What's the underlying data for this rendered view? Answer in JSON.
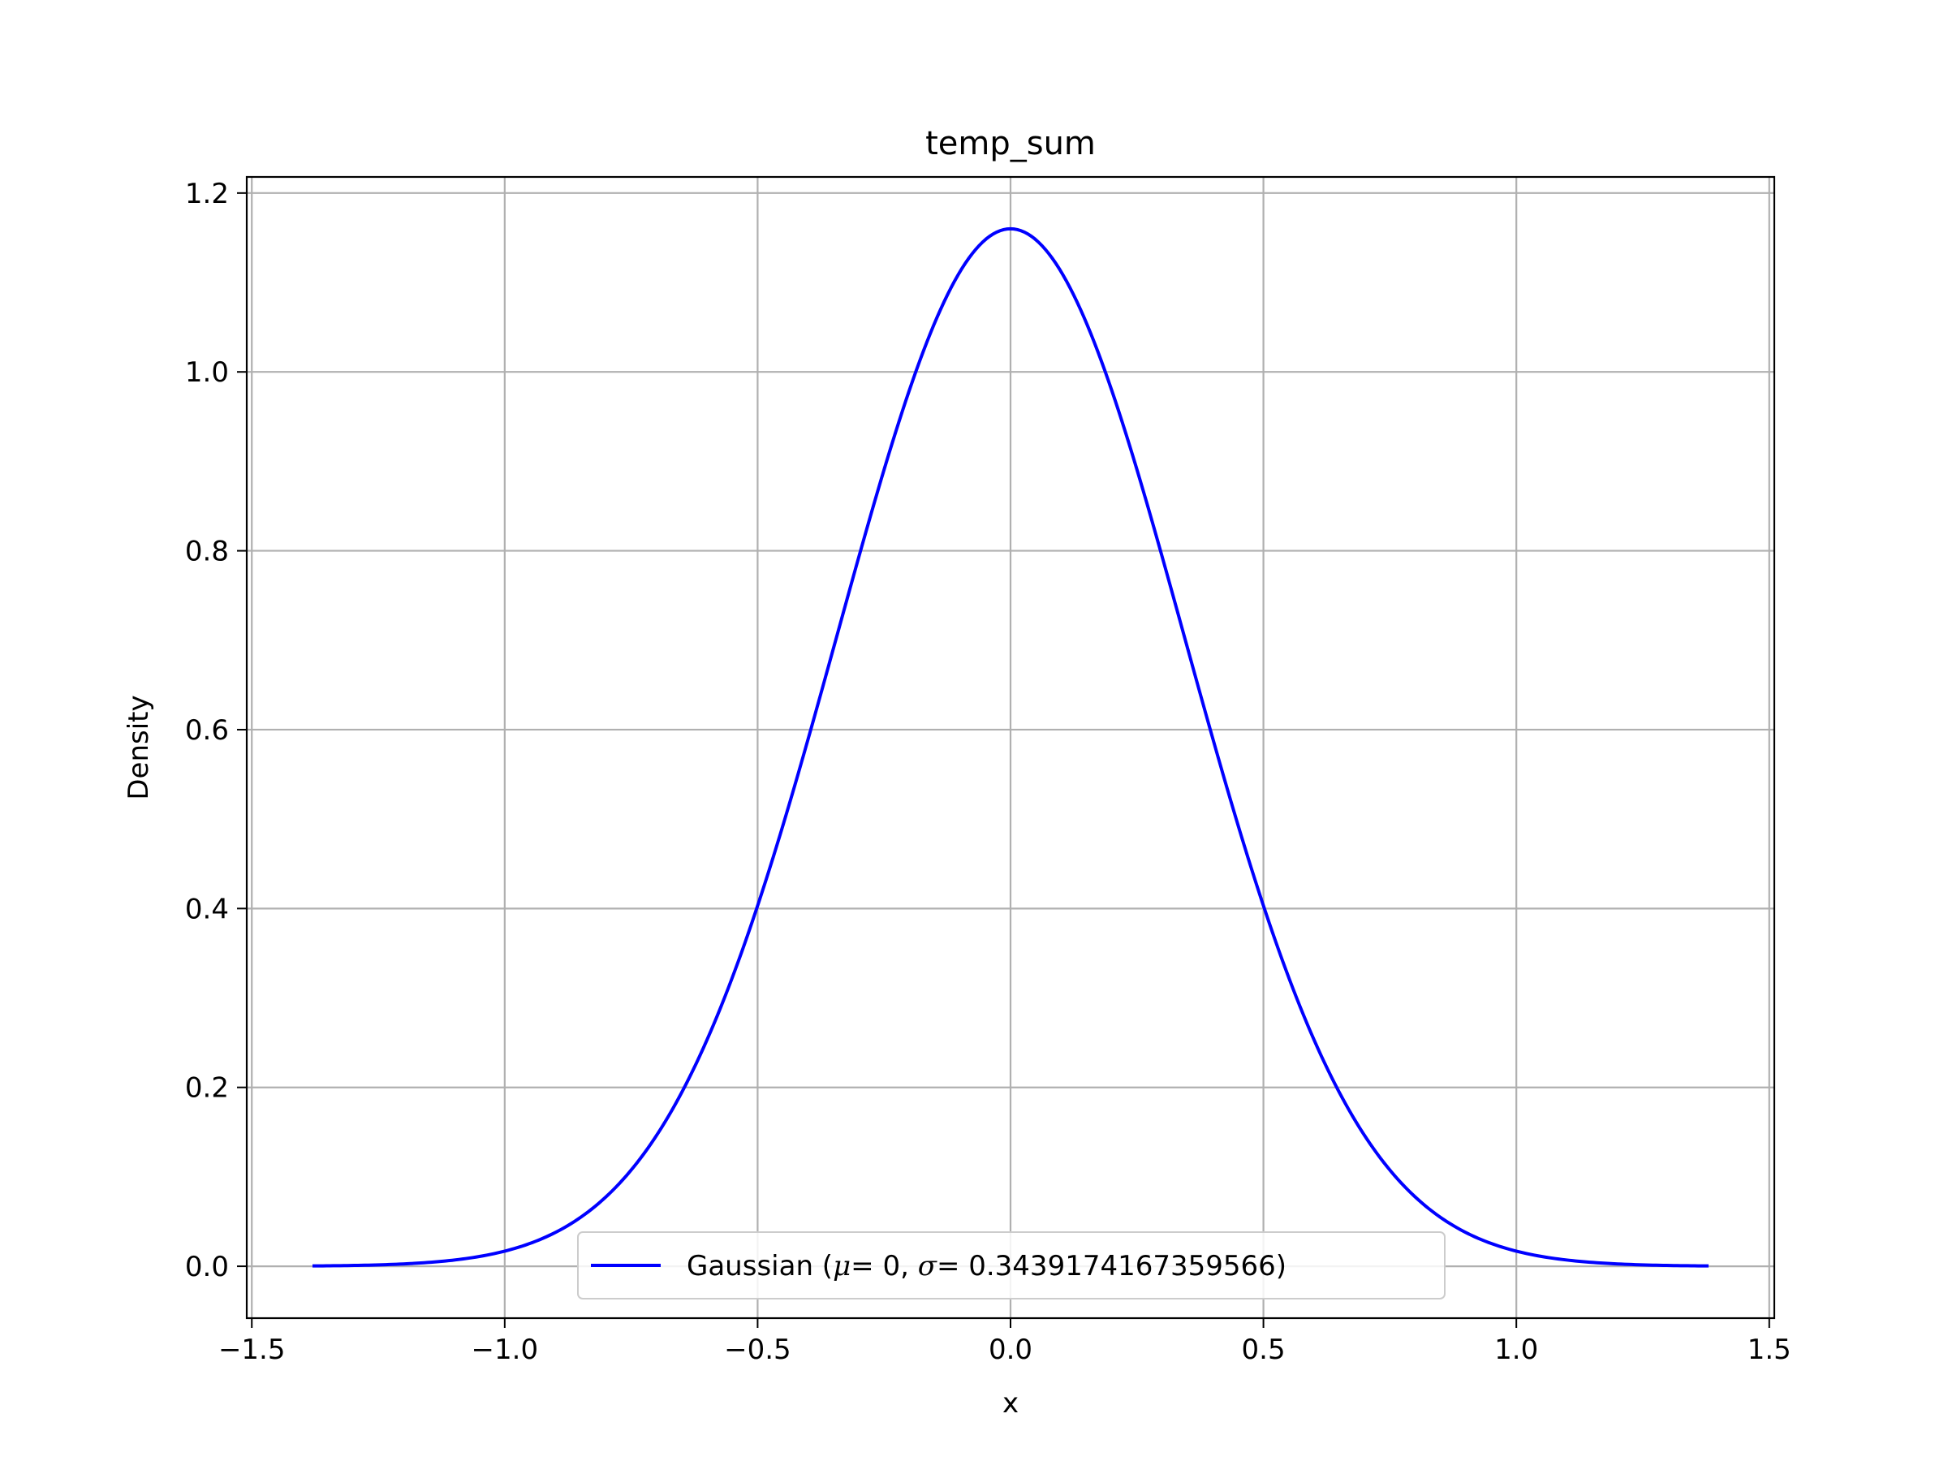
{
  "chart_data": {
    "type": "line",
    "title": "temp_sum",
    "xlabel": "x",
    "ylabel": "Density",
    "xlim": [
      -1.51,
      1.51
    ],
    "ylim": [
      -0.058,
      1.218
    ],
    "x_ticks": [
      -1.5,
      -1.0,
      -0.5,
      0.0,
      0.5,
      1.0,
      1.5
    ],
    "x_tick_labels": [
      "−1.5",
      "−1.0",
      "−0.5",
      "0.0",
      "0.5",
      "1.0",
      "1.5"
    ],
    "y_ticks": [
      0.0,
      0.2,
      0.4,
      0.6,
      0.8,
      1.0,
      1.2
    ],
    "y_tick_labels": [
      "0.0",
      "0.2",
      "0.4",
      "0.6",
      "0.8",
      "1.0",
      "1.2"
    ],
    "grid": true,
    "legend_position": "bottom-center",
    "series": [
      {
        "name": "Gaussian (μ = 0, σ = 0.3439174167359566)",
        "color": "#0000ff",
        "function": "gaussian",
        "mu": 0,
        "sigma": 0.3439174167359566,
        "x_range": [
          -1.38,
          1.38
        ],
        "x": [
          -1.38,
          -1.2,
          -1.0,
          -0.9,
          -0.8,
          -0.7,
          -0.6,
          -0.5,
          -0.4,
          -0.3,
          -0.2,
          -0.1,
          0.0,
          0.1,
          0.2,
          0.3,
          0.4,
          0.5,
          0.6,
          0.7,
          0.8,
          0.9,
          1.0,
          1.2,
          1.38
        ],
        "y": [
          0.0004,
          0.0026,
          0.0169,
          0.0378,
          0.0776,
          0.1468,
          0.2544,
          0.4058,
          0.5955,
          0.8038,
          0.9974,
          1.1386,
          1.16,
          1.1386,
          0.9974,
          0.8038,
          0.5955,
          0.4058,
          0.2544,
          0.1468,
          0.0776,
          0.0378,
          0.0169,
          0.0026,
          0.0004
        ]
      }
    ]
  },
  "legend": {
    "prefix": "Gaussian (",
    "mu_symbol": "μ",
    "mu_value": "= 0, ",
    "sigma_symbol": "σ",
    "sigma_value": "= 0.3439174167359566)"
  }
}
